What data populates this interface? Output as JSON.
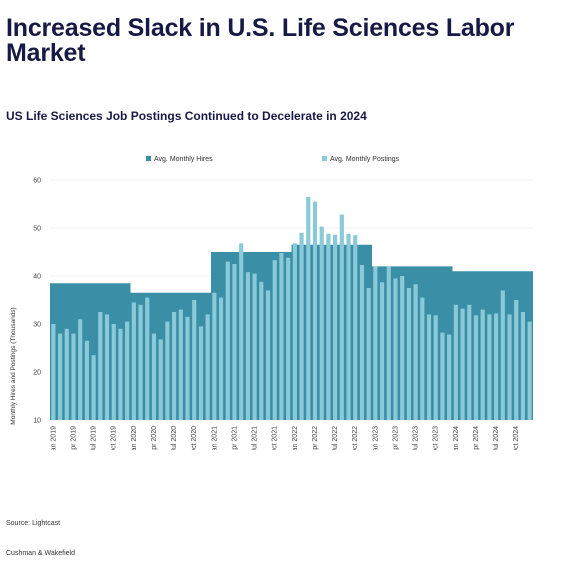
{
  "headline": "Increased Slack in U.S. Life Sciences Labor Market",
  "chart_title": "US Life Sciences Job Postings Continued to Decelerate in 2024",
  "source": "Source: Lightcast",
  "footer": "Cushman & Wakefield",
  "colors": {
    "hires": "#3a8ea6",
    "postings": "#8ac9d8",
    "gridline": "#e6e6e6",
    "text": "#171a44"
  },
  "chart_data": {
    "type": "bar",
    "ylabel": "Monthly Hires and Postings (Thousands)",
    "xlabel": "",
    "ylim": [
      10,
      60
    ],
    "yticks": [
      10,
      20,
      30,
      40,
      50,
      60
    ],
    "grid": true,
    "legend": "top-center",
    "x_tick_labels": [
      "Jan 2019",
      "Apr 2019",
      "Jul 2019",
      "Oct 2019",
      "Jan 2020",
      "Apr 2020",
      "Jul 2020",
      "Oct 2020",
      "Jan 2021",
      "Apr 2021",
      "Jul 2021",
      "Oct 2021",
      "Jan 2022",
      "Apr 2022",
      "Jul 2022",
      "Oct 2022",
      "Jan 2023",
      "Apr 2023",
      "Jul 2023",
      "Oct 2023",
      "Jan 2024",
      "Apr 2024",
      "Jul 2024",
      "Oct 2024"
    ],
    "series": [
      {
        "name": "Avg. Monthly Hires",
        "type": "area",
        "values": [
          38.5,
          38.5,
          38.5,
          38.5,
          38.5,
          38.5,
          38.5,
          38.5,
          38.5,
          38.5,
          38.5,
          38.5,
          36.5,
          36.5,
          36.5,
          36.5,
          36.5,
          36.5,
          36.5,
          36.5,
          36.5,
          36.5,
          36.5,
          36.5,
          45,
          45,
          45,
          45,
          45,
          45,
          45,
          45,
          45,
          45,
          45,
          45,
          46.5,
          46.5,
          46.5,
          46.5,
          46.5,
          46.5,
          46.5,
          46.5,
          46.5,
          46.5,
          46.5,
          46.5,
          42,
          42,
          42,
          42,
          42,
          42,
          42,
          42,
          42,
          42,
          42,
          42,
          41,
          41,
          41,
          41,
          41,
          41,
          41,
          41,
          41,
          41,
          41,
          41
        ]
      },
      {
        "name": "Avg. Monthly Postings",
        "type": "bar",
        "values": [
          30,
          28,
          29,
          28,
          31,
          26.5,
          23.5,
          32.5,
          32,
          30,
          29,
          30.5,
          34.5,
          34,
          35.5,
          28,
          26.8,
          30.5,
          32.5,
          33,
          31.5,
          35,
          29.5,
          32,
          36.5,
          35.5,
          43,
          42.5,
          46.8,
          40.8,
          40.5,
          38.8,
          37,
          43.3,
          44.8,
          43.8,
          46.8,
          49,
          56.5,
          55.5,
          50.3,
          48.8,
          48.6,
          52.8,
          48.8,
          48.5,
          42.3,
          37.5,
          42,
          38.7,
          42,
          39.5,
          40,
          37.5,
          38.3,
          35.5,
          32,
          31.8,
          28.2,
          27.8,
          34,
          33.2,
          34,
          31.8,
          33,
          32,
          32.2,
          37,
          32,
          35,
          32.5,
          30.5
        ]
      }
    ]
  }
}
